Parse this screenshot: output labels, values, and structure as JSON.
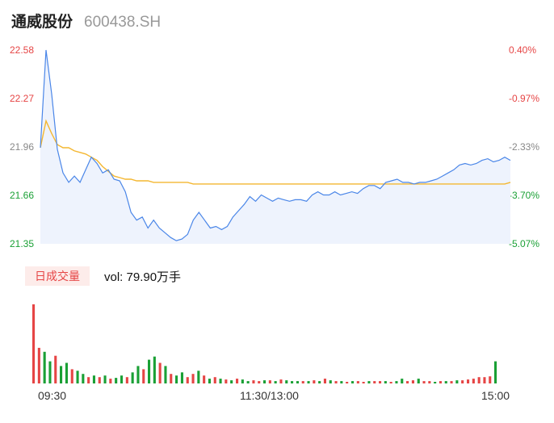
{
  "header": {
    "stock_name": "通威股份",
    "stock_code": "600438.SH"
  },
  "y_axis_left": [
    "22.58",
    "22.27",
    "21.96",
    "21.66",
    "21.35"
  ],
  "y_axis_right": [
    "0.40%",
    "-0.97%",
    "-2.33%",
    "-3.70%",
    "-5.07%"
  ],
  "volume": {
    "tab_label": "日成交量",
    "summary": "vol: 79.90万手"
  },
  "x_axis": [
    "09:30",
    "11:30/13:00",
    "15:00"
  ],
  "colors": {
    "price": "#4a86e8",
    "avg": "#f4b731",
    "up": "#e64545",
    "down": "#1aa035",
    "flat": "#888888"
  },
  "chart_data": [
    {
      "type": "line",
      "title": "",
      "ylim": [
        21.35,
        22.58
      ],
      "x_ticks": [
        "09:30",
        "11:30/13:00",
        "15:00"
      ],
      "series": [
        {
          "values": [
            21.96,
            22.58,
            22.3,
            21.95,
            21.8,
            21.74,
            21.78,
            21.74,
            21.82,
            21.9,
            21.86,
            21.8,
            21.82,
            21.76,
            21.75,
            21.68,
            21.55,
            21.5,
            21.52,
            21.45,
            21.5,
            21.45,
            21.42,
            21.39,
            21.37,
            21.38,
            21.41,
            21.5,
            21.55,
            21.5,
            21.45,
            21.46,
            21.44,
            21.46,
            21.52,
            21.56,
            21.6,
            21.65,
            21.62,
            21.66,
            21.64,
            21.62,
            21.64,
            21.63,
            21.62,
            21.63,
            21.63,
            21.62,
            21.66,
            21.68,
            21.66,
            21.66,
            21.68,
            21.66,
            21.67,
            21.68,
            21.67,
            21.7,
            21.72,
            21.72,
            21.7,
            21.74,
            21.75,
            21.76,
            21.74,
            21.74,
            21.73,
            21.74,
            21.74,
            21.75,
            21.76,
            21.78,
            21.8,
            21.82,
            21.85,
            21.86,
            21.85,
            21.86,
            21.88,
            21.89,
            21.87,
            21.88,
            21.9,
            21.88
          ]
        },
        {
          "values": [
            21.96,
            22.13,
            22.05,
            21.98,
            21.96,
            21.96,
            21.94,
            21.93,
            21.92,
            21.9,
            21.88,
            21.84,
            21.81,
            21.78,
            21.77,
            21.76,
            21.76,
            21.75,
            21.75,
            21.75,
            21.74,
            21.74,
            21.74,
            21.74,
            21.74,
            21.74,
            21.74,
            21.73,
            21.73,
            21.73,
            21.73,
            21.73,
            21.73,
            21.73,
            21.73,
            21.73,
            21.73,
            21.73,
            21.73,
            21.73,
            21.73,
            21.73,
            21.73,
            21.73,
            21.73,
            21.73,
            21.73,
            21.73,
            21.73,
            21.73,
            21.73,
            21.73,
            21.73,
            21.73,
            21.73,
            21.73,
            21.73,
            21.73,
            21.73,
            21.73,
            21.73,
            21.73,
            21.73,
            21.73,
            21.73,
            21.73,
            21.73,
            21.73,
            21.73,
            21.73,
            21.73,
            21.73,
            21.73,
            21.73,
            21.73,
            21.73,
            21.73,
            21.73,
            21.73,
            21.73,
            21.73,
            21.73,
            21.73,
            21.74
          ]
        }
      ]
    },
    {
      "type": "bar",
      "title": "",
      "x_ticks": [
        "09:30",
        "11:30/13:00",
        "15:00"
      ],
      "values": [
        100,
        45,
        40,
        28,
        35,
        22,
        26,
        18,
        16,
        12,
        8,
        10,
        8,
        10,
        6,
        7,
        10,
        8,
        14,
        22,
        18,
        30,
        34,
        26,
        22,
        12,
        10,
        14,
        8,
        12,
        16,
        10,
        6,
        8,
        6,
        5,
        4,
        6,
        5,
        3,
        4,
        3,
        4,
        4,
        3,
        5,
        4,
        3,
        3,
        3,
        3,
        4,
        3,
        6,
        4,
        3,
        3,
        2,
        3,
        3,
        2,
        3,
        3,
        3,
        3,
        2,
        3,
        6,
        3,
        4,
        6,
        3,
        3,
        2,
        3,
        3,
        3,
        4,
        4,
        5,
        6,
        8,
        8,
        9,
        28
      ],
      "directions": [
        "up",
        "up",
        "down",
        "down",
        "up",
        "down",
        "down",
        "up",
        "down",
        "down",
        "up",
        "down",
        "up",
        "down",
        "up",
        "down",
        "down",
        "up",
        "down",
        "down",
        "up",
        "down",
        "down",
        "up",
        "down",
        "up",
        "down",
        "down",
        "up",
        "up",
        "down",
        "up",
        "down",
        "up",
        "down",
        "up",
        "down",
        "up",
        "down",
        "down",
        "up",
        "up",
        "down",
        "up",
        "down",
        "up",
        "down",
        "down",
        "down",
        "up",
        "down",
        "up",
        "down",
        "up",
        "down",
        "up",
        "down",
        "up",
        "down",
        "up",
        "up",
        "down",
        "up",
        "up",
        "down",
        "up",
        "down",
        "down",
        "up",
        "up",
        "down",
        "up",
        "up",
        "down",
        "up",
        "down",
        "up",
        "down",
        "up",
        "up",
        "up",
        "up",
        "up",
        "up",
        "down"
      ]
    }
  ]
}
